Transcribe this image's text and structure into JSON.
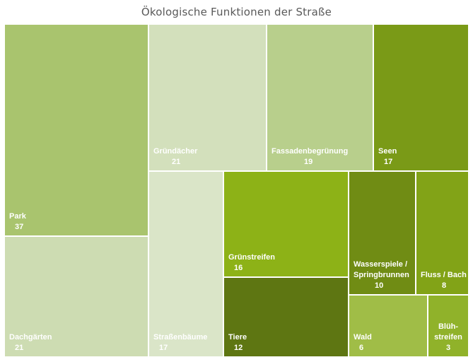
{
  "chart_data": {
    "type": "treemap",
    "title": "Ökologische Funktionen der Straße",
    "items": [
      {
        "label": "Park",
        "value": 37,
        "color": "#a9c46e"
      },
      {
        "label": "Dachgärten",
        "value": 21,
        "color": "#cddcb2"
      },
      {
        "label": "Gründächer",
        "value": 21,
        "color": "#d3e0bc"
      },
      {
        "label": "Fassadenbegrünung",
        "value": 19,
        "color": "#b8cf8c"
      },
      {
        "label": "Seen",
        "value": 17,
        "color": "#7a9a17"
      },
      {
        "label": "Straßenbäume",
        "value": 17,
        "color": "#dae5c8"
      },
      {
        "label": "Grünstreifen",
        "value": 16,
        "color": "#8db217"
      },
      {
        "label": "Tiere",
        "value": 12,
        "color": "#5e7612"
      },
      {
        "label": "Wasserspiele / Springbrunnen",
        "value": 10,
        "color": "#708c14"
      },
      {
        "label": "Fluss / Bach",
        "value": 8,
        "color": "#82a317"
      },
      {
        "label": "Wald",
        "value": 6,
        "color": "#a0bd47"
      },
      {
        "label": "Blüh- streifen",
        "value": 3,
        "color": "#90b22a"
      }
    ]
  }
}
